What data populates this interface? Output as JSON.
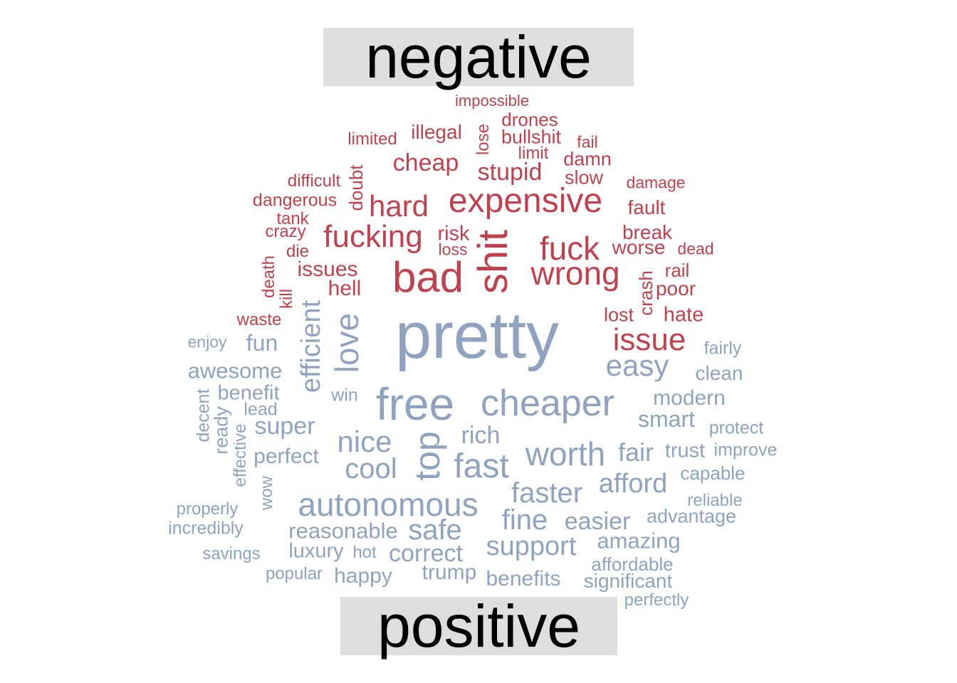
{
  "chart_data": {
    "type": "wordcloud",
    "title": "",
    "groups": [
      {
        "name": "negative",
        "color": "#c0424e",
        "words": [
          "impossible",
          "drones",
          "illegal",
          "limited",
          "lose",
          "bullshit",
          "fail",
          "limit",
          "damn",
          "cheap",
          "stupid",
          "difficult",
          "doubt",
          "slow",
          "damage",
          "dangerous",
          "hard",
          "expensive",
          "fault",
          "tank",
          "crazy",
          "fucking",
          "risk",
          "shit",
          "fuck",
          "break",
          "die",
          "loss",
          "worse",
          "dead",
          "issues",
          "bad",
          "wrong",
          "death",
          "crash",
          "rail",
          "hell",
          "poor",
          "kill",
          "waste",
          "lost",
          "hate",
          "issue"
        ]
      },
      {
        "name": "positive",
        "color": "#8fa3c0",
        "words": [
          "pretty",
          "enjoy",
          "fun",
          "fairly",
          "love",
          "efficient",
          "awesome",
          "easy",
          "clean",
          "benefit",
          "decent",
          "win",
          "free",
          "cheaper",
          "modern",
          "lead",
          "ready",
          "super",
          "smart",
          "protect",
          "effective",
          "rich",
          "nice",
          "top",
          "fair",
          "trust",
          "improve",
          "perfect",
          "cool",
          "fast",
          "worth",
          "capable",
          "wow",
          "afford",
          "faster",
          "autonomous",
          "reliable",
          "properly",
          "fine",
          "advantage",
          "incredibly",
          "reasonable",
          "safe",
          "easier",
          "amazing",
          "luxury",
          "hot",
          "correct",
          "support",
          "savings",
          "affordable",
          "popular",
          "happy",
          "trump",
          "benefits",
          "significant",
          "perfectly"
        ]
      }
    ]
  }
}
